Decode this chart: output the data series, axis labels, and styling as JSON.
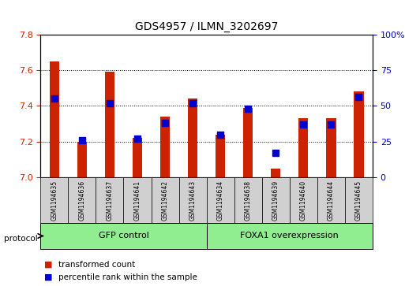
{
  "title": "GDS4957 / ILMN_3202697",
  "samples": [
    "GSM1194635",
    "GSM1194636",
    "GSM1194637",
    "GSM1194641",
    "GSM1194642",
    "GSM1194643",
    "GSM1194634",
    "GSM1194638",
    "GSM1194639",
    "GSM1194640",
    "GSM1194644",
    "GSM1194645"
  ],
  "transformed_count": [
    7.65,
    7.2,
    7.59,
    7.22,
    7.34,
    7.44,
    7.24,
    7.39,
    7.05,
    7.33,
    7.33,
    7.48
  ],
  "percentile_rank": [
    55,
    26,
    52,
    27,
    38,
    52,
    30,
    48,
    17,
    37,
    37,
    56
  ],
  "ylim_left": [
    7.0,
    7.8
  ],
  "ylim_right": [
    0,
    100
  ],
  "yticks_left": [
    7.0,
    7.2,
    7.4,
    7.6,
    7.8
  ],
  "yticks_right": [
    0,
    25,
    50,
    75,
    100
  ],
  "bar_color": "#cc2200",
  "dot_color": "#0000cc",
  "bar_width": 0.35,
  "dot_size": 30,
  "background_color": "#ffffff",
  "tick_label_color_left": "#cc2200",
  "tick_label_color_right": "#0000cc",
  "legend_items": [
    "transformed count",
    "percentile rank within the sample"
  ],
  "group_bg_color": "#90EE90",
  "sample_box_color": "#d0d0d0"
}
